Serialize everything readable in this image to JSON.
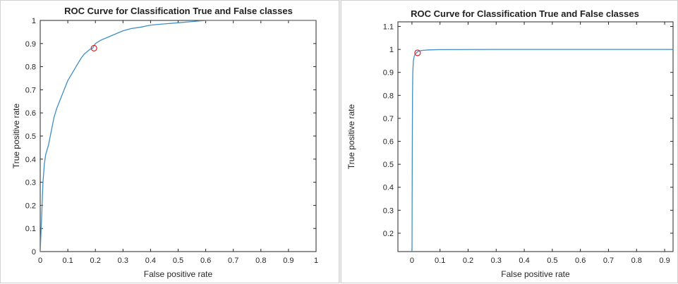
{
  "colors": {
    "curve": "#3f8fc4",
    "marker": "#d62728",
    "axes": "#262626"
  },
  "chart_data": [
    {
      "type": "line",
      "title": "ROC Curve for Classification True and False classes",
      "xlabel": "False positive rate",
      "ylabel": "True positive rate",
      "xlim": [
        0,
        1
      ],
      "ylim": [
        0,
        1
      ],
      "xticks": [
        "0",
        "0.1",
        "0.2",
        "0.3",
        "0.4",
        "0.5",
        "0.6",
        "0.7",
        "0.8",
        "0.9",
        "1"
      ],
      "yticks": [
        "0",
        "0.1",
        "0.2",
        "0.3",
        "0.4",
        "0.5",
        "0.6",
        "0.7",
        "0.8",
        "0.9",
        "1"
      ],
      "grid": false,
      "x": [
        0,
        0.005,
        0.01,
        0.015,
        0.02,
        0.03,
        0.04,
        0.05,
        0.06,
        0.07,
        0.08,
        0.09,
        0.1,
        0.11,
        0.12,
        0.13,
        0.14,
        0.15,
        0.16,
        0.18,
        0.19,
        0.2,
        0.22,
        0.25,
        0.28,
        0.3,
        0.33,
        0.36,
        0.4,
        0.45,
        0.5,
        0.55,
        0.6,
        0.7,
        0.8,
        1.0
      ],
      "y": [
        0,
        0.15,
        0.3,
        0.38,
        0.42,
        0.46,
        0.52,
        0.58,
        0.62,
        0.65,
        0.68,
        0.71,
        0.74,
        0.76,
        0.78,
        0.8,
        0.82,
        0.84,
        0.855,
        0.875,
        0.88,
        0.9,
        0.915,
        0.93,
        0.945,
        0.955,
        0.965,
        0.97,
        0.98,
        0.985,
        0.99,
        0.995,
        1.0,
        1.0,
        1.0,
        1.0
      ],
      "marker": {
        "x": 0.195,
        "y": 0.88
      }
    },
    {
      "type": "line",
      "title": "ROC Curve for Classification True and False classes",
      "xlabel": "False positive rate",
      "ylabel": "True positive rate",
      "xlim": [
        -0.05,
        0.93
      ],
      "ylim": [
        0.12,
        1.12
      ],
      "xticks": [
        "0",
        "0.1",
        "0.2",
        "0.3",
        "0.4",
        "0.5",
        "0.6",
        "0.7",
        "0.8",
        "0.9"
      ],
      "yticks": [
        "0.2",
        "0.3",
        "0.4",
        "0.5",
        "0.6",
        "0.7",
        "0.8",
        "0.9",
        "1",
        "1.1"
      ],
      "grid": false,
      "x": [
        0,
        0.001,
        0.002,
        0.003,
        0.005,
        0.008,
        0.012,
        0.018,
        0.025,
        0.04,
        0.06,
        0.1,
        0.3,
        0.6,
        0.93
      ],
      "y": [
        0.0,
        0.5,
        0.8,
        0.9,
        0.95,
        0.97,
        0.98,
        0.988,
        0.993,
        0.996,
        0.998,
        0.999,
        1.0,
        1.0,
        1.0
      ],
      "marker": {
        "x": 0.02,
        "y": 0.985
      }
    }
  ]
}
